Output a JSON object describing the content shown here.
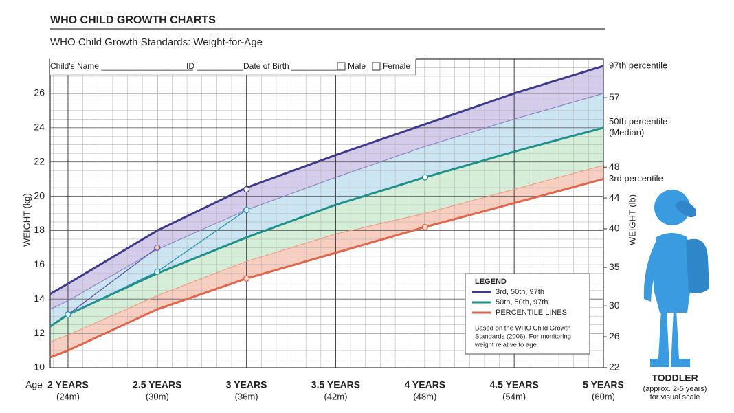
{
  "chart_data": {
    "type": "line",
    "title": "WHO CHILD GROWTH CHARTS",
    "subtitle": "WHO Child Growth Standards: Weight-for-Age",
    "form": [
      "Child's Name ____________________",
      "ID __________",
      "Date of Birth __________",
      "Male",
      "Female"
    ],
    "x_label": "Age",
    "y_label": "WEIGHT (kg)",
    "y2_label": "WEIGHT (lb)",
    "x": [
      22.8,
      24,
      30,
      36,
      42,
      48,
      54,
      60
    ],
    "xlim": [
      22.8,
      60
    ],
    "xticks": [
      {
        "value": 24,
        "label": "2 YEARS"
      },
      {
        "value": 30,
        "label": "2.5 YEARS"
      },
      {
        "value": 36,
        "label": "3 YEARS"
      },
      {
        "value": 42,
        "label": "3.5 YEARS"
      },
      {
        "value": 48,
        "label": "4 YEARS"
      },
      {
        "value": 54,
        "label": "4.5 YEARS"
      },
      {
        "value": 60,
        "label": "5 YEARS"
      }
    ],
    "xtick_sublabels": [
      "(24m)",
      "(30m)",
      "(36m)",
      "(42m)",
      "(48m)",
      "(54m)",
      "(60m)"
    ],
    "ylim": [
      10,
      28
    ],
    "yticks": [
      10,
      12,
      14,
      16,
      18,
      20,
      22,
      24,
      26
    ],
    "y2lim": [
      22,
      62
    ],
    "y2ticks": [
      22,
      26,
      30,
      35,
      40,
      44,
      48,
      57
    ],
    "grid": true,
    "series": [
      {
        "color": "#3d3a8c",
        "width": 3,
        "band": "#cdc3e6",
        "annotation": [
          "97th percentile"
        ],
        "values": [
          14.3,
          14.9,
          18.0,
          20.5,
          22.4,
          24.2,
          26.0,
          27.6
        ]
      },
      {
        "color": "#8e86c4",
        "width": 1.2,
        "band": "#c3e0f0",
        "values": [
          13.4,
          13.9,
          16.9,
          19.2,
          21.1,
          22.9,
          24.5,
          26.0
        ]
      },
      {
        "color": "#1e8f8a",
        "width": 3,
        "band": "#cdebd0",
        "annotation": [
          "50th percentile",
          "(Median)"
        ],
        "values": [
          12.4,
          13.1,
          15.5,
          17.6,
          19.5,
          21.1,
          22.6,
          24.0
        ]
      },
      {
        "color": "#ee9f86",
        "width": 1.2,
        "band": "#f7c6b5",
        "values": [
          11.5,
          11.9,
          14.2,
          16.2,
          17.8,
          19.0,
          20.4,
          21.8
        ]
      },
      {
        "color": "#e0654a",
        "width": 3,
        "annotation": [
          "3rd percentile"
        ],
        "values": [
          10.6,
          11.0,
          13.4,
          15.2,
          16.7,
          18.2,
          19.6,
          21.0
        ]
      }
    ],
    "measurements": [
      {
        "color": "#5b55a6",
        "marker": "#f0c2b6",
        "line": true,
        "x": [
          24,
          30
        ],
        "values": [
          13.1,
          17.0
        ]
      },
      {
        "color": "#2a8fa8",
        "marker": "#d7eef4",
        "line": true,
        "x": [
          24,
          30,
          36
        ],
        "values": [
          13.1,
          15.6,
          19.2
        ]
      },
      {
        "color": "#3d3a8c",
        "marker": "#ffffff",
        "line": false,
        "x": [
          36
        ],
        "values": [
          20.4
        ]
      },
      {
        "color": "#1e8f8a",
        "marker": "#ffffff",
        "line": false,
        "x": [
          48
        ],
        "values": [
          21.1
        ]
      },
      {
        "color": "#e0654a",
        "marker": "#fbd8cc",
        "line": false,
        "x": [
          36,
          48
        ],
        "values": [
          15.2,
          18.2
        ]
      }
    ],
    "legend": {
      "position": "bottom-right",
      "title": "LEGEND",
      "items": [
        {
          "label": "3rd, 50th, 97th",
          "color": "#3d3a8c"
        },
        {
          "label": "50th, 50th, 97th",
          "color": "#1e8f8a"
        },
        {
          "label": "PERCENTILE LINES",
          "color": "#e0654a"
        }
      ],
      "note": [
        "Based on the WHO Child Growth",
        "Standards (2006). For monitoring",
        "weight relative to age."
      ]
    },
    "figure_caption": [
      "TODDLER",
      "(approx. 2-5 years)",
      "for visual scale"
    ]
  }
}
